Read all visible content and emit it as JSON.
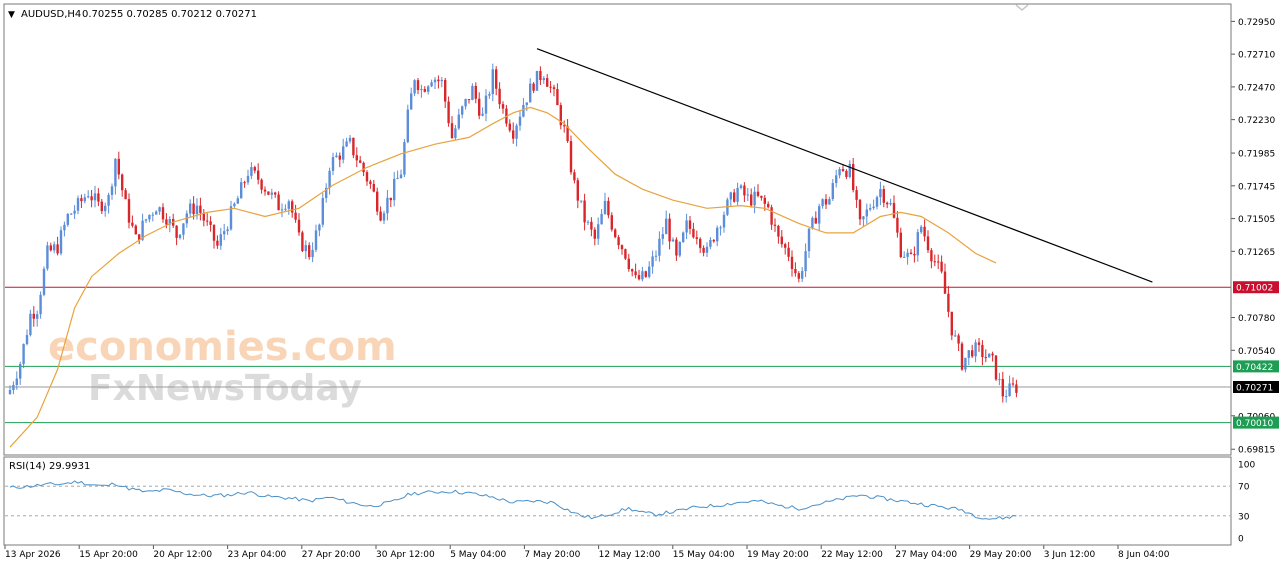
{
  "header": {
    "arrow": "▼",
    "symbol": "AUDUSD,H4",
    "ohlc": "0.70255 0.70285 0.70212 0.70271"
  },
  "rsi_label": "RSI(14) 29.9931",
  "watermark": {
    "line1": "economies.com",
    "line2": "FxNewsToday"
  },
  "colors": {
    "bull": "#5b8dd9",
    "bear": "#d9262b",
    "ma": "#e8a33d",
    "resistance": "#c8102e",
    "support": "#1e9e54",
    "trendline": "#000000",
    "rsi": "#4a90c8"
  },
  "chart_data": [
    {
      "type": "candlestick",
      "symbol": "AUDUSD",
      "timeframe": "H4",
      "ylim": [
        0.6978,
        0.7307
      ],
      "y_ticks": [
        "0.72950",
        "0.72710",
        "0.72470",
        "0.72230",
        "0.71985",
        "0.71745",
        "0.71505",
        "0.71265",
        "0.70780",
        "0.70540",
        "0.70060",
        "0.69815"
      ],
      "x_ticks": [
        "13 Apr 2026",
        "15 Apr 20:00",
        "20 Apr 12:00",
        "23 Apr 04:00",
        "27 Apr 20:00",
        "30 Apr 12:00",
        "5 May 04:00",
        "7 May 20:00",
        "12 May 12:00",
        "15 May 04:00",
        "19 May 20:00",
        "22 May 12:00",
        "27 May 04:00",
        "29 May 20:00",
        "3 Jun 12:00",
        "8 Jun 04:00"
      ],
      "price_tags": [
        {
          "value": 0.71002,
          "label": "0.71002",
          "kind": "resistance"
        },
        {
          "value": 0.70422,
          "label": "0.70422",
          "kind": "support"
        },
        {
          "value": 0.70271,
          "label": "0.70271",
          "kind": "current"
        },
        {
          "value": 0.7001,
          "label": "0.70010",
          "kind": "support"
        }
      ],
      "horizontal_lines": [
        {
          "value": 0.71002,
          "kind": "resistance"
        },
        {
          "value": 0.70422,
          "kind": "support"
        },
        {
          "value": 0.70271,
          "kind": "current"
        },
        {
          "value": 0.7001,
          "kind": "support"
        }
      ],
      "trendline": {
        "from_bar": 155,
        "from_price": 0.7275,
        "to_bar": 336,
        "to_price": 0.7104
      },
      "close_path": [
        [
          0,
          0.7025
        ],
        [
          3,
          0.7045
        ],
        [
          6,
          0.708
        ],
        [
          8,
          0.7085
        ],
        [
          11,
          0.7125
        ],
        [
          14,
          0.713
        ],
        [
          17,
          0.7152
        ],
        [
          20,
          0.716
        ],
        [
          23,
          0.717
        ],
        [
          26,
          0.716
        ],
        [
          29,
          0.7165
        ],
        [
          31,
          0.7195
        ],
        [
          34,
          0.716
        ],
        [
          37,
          0.7135
        ],
        [
          40,
          0.715
        ],
        [
          43,
          0.716
        ],
        [
          46,
          0.7152
        ],
        [
          49,
          0.7138
        ],
        [
          52,
          0.7155
        ],
        [
          55,
          0.716
        ],
        [
          58,
          0.7145
        ],
        [
          61,
          0.713
        ],
        [
          64,
          0.7148
        ],
        [
          67,
          0.7165
        ],
        [
          70,
          0.7185
        ],
        [
          73,
          0.718
        ],
        [
          76,
          0.717
        ],
        [
          79,
          0.716
        ],
        [
          82,
          0.7165
        ],
        [
          85,
          0.7135
        ],
        [
          88,
          0.7125
        ],
        [
          91,
          0.7145
        ],
        [
          94,
          0.719
        ],
        [
          97,
          0.7198
        ],
        [
          100,
          0.7205
        ],
        [
          103,
          0.719
        ],
        [
          106,
          0.7175
        ],
        [
          109,
          0.7155
        ],
        [
          112,
          0.7168
        ],
        [
          115,
          0.7185
        ],
        [
          117,
          0.7225
        ],
        [
          119,
          0.7255
        ],
        [
          121,
          0.7245
        ],
        [
          124,
          0.7255
        ],
        [
          127,
          0.725
        ],
        [
          130,
          0.721
        ],
        [
          133,
          0.723
        ],
        [
          136,
          0.7245
        ],
        [
          139,
          0.7225
        ],
        [
          142,
          0.7255
        ],
        [
          145,
          0.723
        ],
        [
          148,
          0.7215
        ],
        [
          151,
          0.7235
        ],
        [
          154,
          0.725
        ],
        [
          157,
          0.7258
        ],
        [
          160,
          0.724
        ],
        [
          163,
          0.7215
        ],
        [
          166,
          0.7175
        ],
        [
          169,
          0.715
        ],
        [
          172,
          0.7135
        ],
        [
          175,
          0.716
        ],
        [
          178,
          0.714
        ],
        [
          181,
          0.7125
        ],
        [
          184,
          0.7105
        ],
        [
          187,
          0.7108
        ],
        [
          190,
          0.7125
        ],
        [
          193,
          0.7148
        ],
        [
          196,
          0.712
        ],
        [
          199,
          0.7145
        ],
        [
          202,
          0.714
        ],
        [
          205,
          0.7125
        ],
        [
          208,
          0.7145
        ],
        [
          211,
          0.716
        ],
        [
          214,
          0.7172
        ],
        [
          217,
          0.7165
        ],
        [
          220,
          0.7165
        ],
        [
          223,
          0.7158
        ],
        [
          226,
          0.7135
        ],
        [
          229,
          0.7125
        ],
        [
          232,
          0.7105
        ],
        [
          235,
          0.7138
        ],
        [
          238,
          0.716
        ],
        [
          241,
          0.7165
        ],
        [
          244,
          0.719
        ],
        [
          247,
          0.7185
        ],
        [
          250,
          0.7145
        ],
        [
          253,
          0.716
        ],
        [
          256,
          0.7172
        ],
        [
          259,
          0.716
        ],
        [
          262,
          0.7128
        ],
        [
          265,
          0.712
        ],
        [
          268,
          0.7145
        ],
        [
          271,
          0.7125
        ],
        [
          274,
          0.7108
        ],
        [
          277,
          0.707
        ],
        [
          280,
          0.7045
        ],
        [
          283,
          0.7055
        ],
        [
          286,
          0.7052
        ],
        [
          289,
          0.7045
        ],
        [
          292,
          0.7022
        ],
        [
          295,
          0.7026
        ],
        [
          296,
          0.7027
        ]
      ],
      "moving_average": {
        "period": "unspecified",
        "points": [
          [
            0,
            0.6983
          ],
          [
            8,
            0.7005
          ],
          [
            14,
            0.704
          ],
          [
            19,
            0.7085
          ],
          [
            24,
            0.7108
          ],
          [
            32,
            0.7125
          ],
          [
            40,
            0.7138
          ],
          [
            48,
            0.7148
          ],
          [
            58,
            0.7155
          ],
          [
            66,
            0.7158
          ],
          [
            75,
            0.7152
          ],
          [
            85,
            0.7158
          ],
          [
            95,
            0.7175
          ],
          [
            105,
            0.7188
          ],
          [
            115,
            0.7198
          ],
          [
            125,
            0.7205
          ],
          [
            135,
            0.721
          ],
          [
            142,
            0.722
          ],
          [
            148,
            0.7228
          ],
          [
            153,
            0.7232
          ],
          [
            158,
            0.7228
          ],
          [
            163,
            0.722
          ],
          [
            170,
            0.7202
          ],
          [
            178,
            0.7183
          ],
          [
            186,
            0.7172
          ],
          [
            195,
            0.7164
          ],
          [
            205,
            0.7158
          ],
          [
            215,
            0.716
          ],
          [
            222,
            0.7158
          ],
          [
            232,
            0.7147
          ],
          [
            240,
            0.714
          ],
          [
            248,
            0.714
          ],
          [
            256,
            0.7152
          ],
          [
            262,
            0.7155
          ],
          [
            268,
            0.7152
          ],
          [
            276,
            0.714
          ],
          [
            284,
            0.7125
          ],
          [
            290,
            0.7118
          ]
        ]
      }
    },
    {
      "type": "line",
      "name": "RSI(14)",
      "ylim": [
        0,
        100
      ],
      "y_ticks": [
        100,
        70,
        30,
        0
      ],
      "levels": [
        70,
        30
      ],
      "values": [
        [
          0,
          68
        ],
        [
          6,
          70
        ],
        [
          10,
          72
        ],
        [
          15,
          73
        ],
        [
          20,
          76
        ],
        [
          24,
          72
        ],
        [
          28,
          70
        ],
        [
          31,
          74
        ],
        [
          34,
          68
        ],
        [
          40,
          62
        ],
        [
          46,
          65
        ],
        [
          52,
          60
        ],
        [
          58,
          57
        ],
        [
          64,
          58
        ],
        [
          70,
          62
        ],
        [
          76,
          56
        ],
        [
          82,
          54
        ],
        [
          88,
          50
        ],
        [
          94,
          55
        ],
        [
          100,
          48
        ],
        [
          106,
          43
        ],
        [
          112,
          48
        ],
        [
          118,
          60
        ],
        [
          124,
          62
        ],
        [
          130,
          63
        ],
        [
          136,
          60
        ],
        [
          142,
          55
        ],
        [
          148,
          48
        ],
        [
          154,
          50
        ],
        [
          160,
          48
        ],
        [
          164,
          38
        ],
        [
          168,
          30
        ],
        [
          172,
          27
        ],
        [
          176,
          32
        ],
        [
          182,
          40
        ],
        [
          186,
          34
        ],
        [
          190,
          32
        ],
        [
          196,
          36
        ],
        [
          202,
          42
        ],
        [
          208,
          44
        ],
        [
          214,
          48
        ],
        [
          220,
          50
        ],
        [
          226,
          44
        ],
        [
          232,
          40
        ],
        [
          238,
          46
        ],
        [
          244,
          52
        ],
        [
          250,
          58
        ],
        [
          256,
          54
        ],
        [
          262,
          50
        ],
        [
          268,
          46
        ],
        [
          274,
          42
        ],
        [
          280,
          38
        ],
        [
          284,
          30
        ],
        [
          288,
          26
        ],
        [
          292,
          27
        ],
        [
          296,
          30
        ]
      ]
    }
  ]
}
